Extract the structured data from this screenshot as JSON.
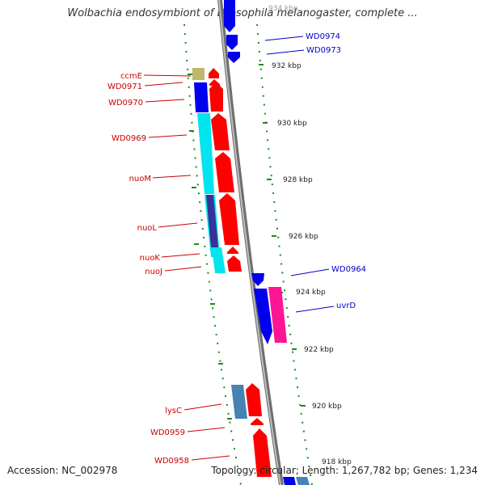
{
  "title": "Wolbachia endosymbiont of Drosophila melanogaster, complete ...",
  "footer": {
    "accession": "Accession: NC_002978",
    "summary": "Topology: circular; Length: 1,267,782 bp; Genes: 1,234"
  },
  "colors": {
    "backbone": "#777777",
    "tick": "#1a8a1a",
    "label_red": "#cc0000",
    "label_blue": "#0000cc",
    "red": "#ff0000",
    "blue": "#0000ee",
    "cyan": "#00e5ee",
    "navy": "#333399",
    "olive": "#bfb76f",
    "steelblue": "#4682b4",
    "magenta": "#ff1493"
  },
  "scale_labels": [
    "934 kbp",
    "932 kbp",
    "930 kbp",
    "928 kbp",
    "926 kbp",
    "924 kbp",
    "922 kbp",
    "920 kbp",
    "918 kbp"
  ],
  "gene_labels_left": [
    "ccmE",
    "WD0971",
    "WD0970",
    "WD0969",
    "nuoM",
    "nuoL",
    "nuoK",
    "nuoJ",
    "lysC",
    "WD0959",
    "WD0958"
  ],
  "gene_labels_right": [
    "WD0974",
    "WD0973",
    "WD0964",
    "uvrD"
  ]
}
